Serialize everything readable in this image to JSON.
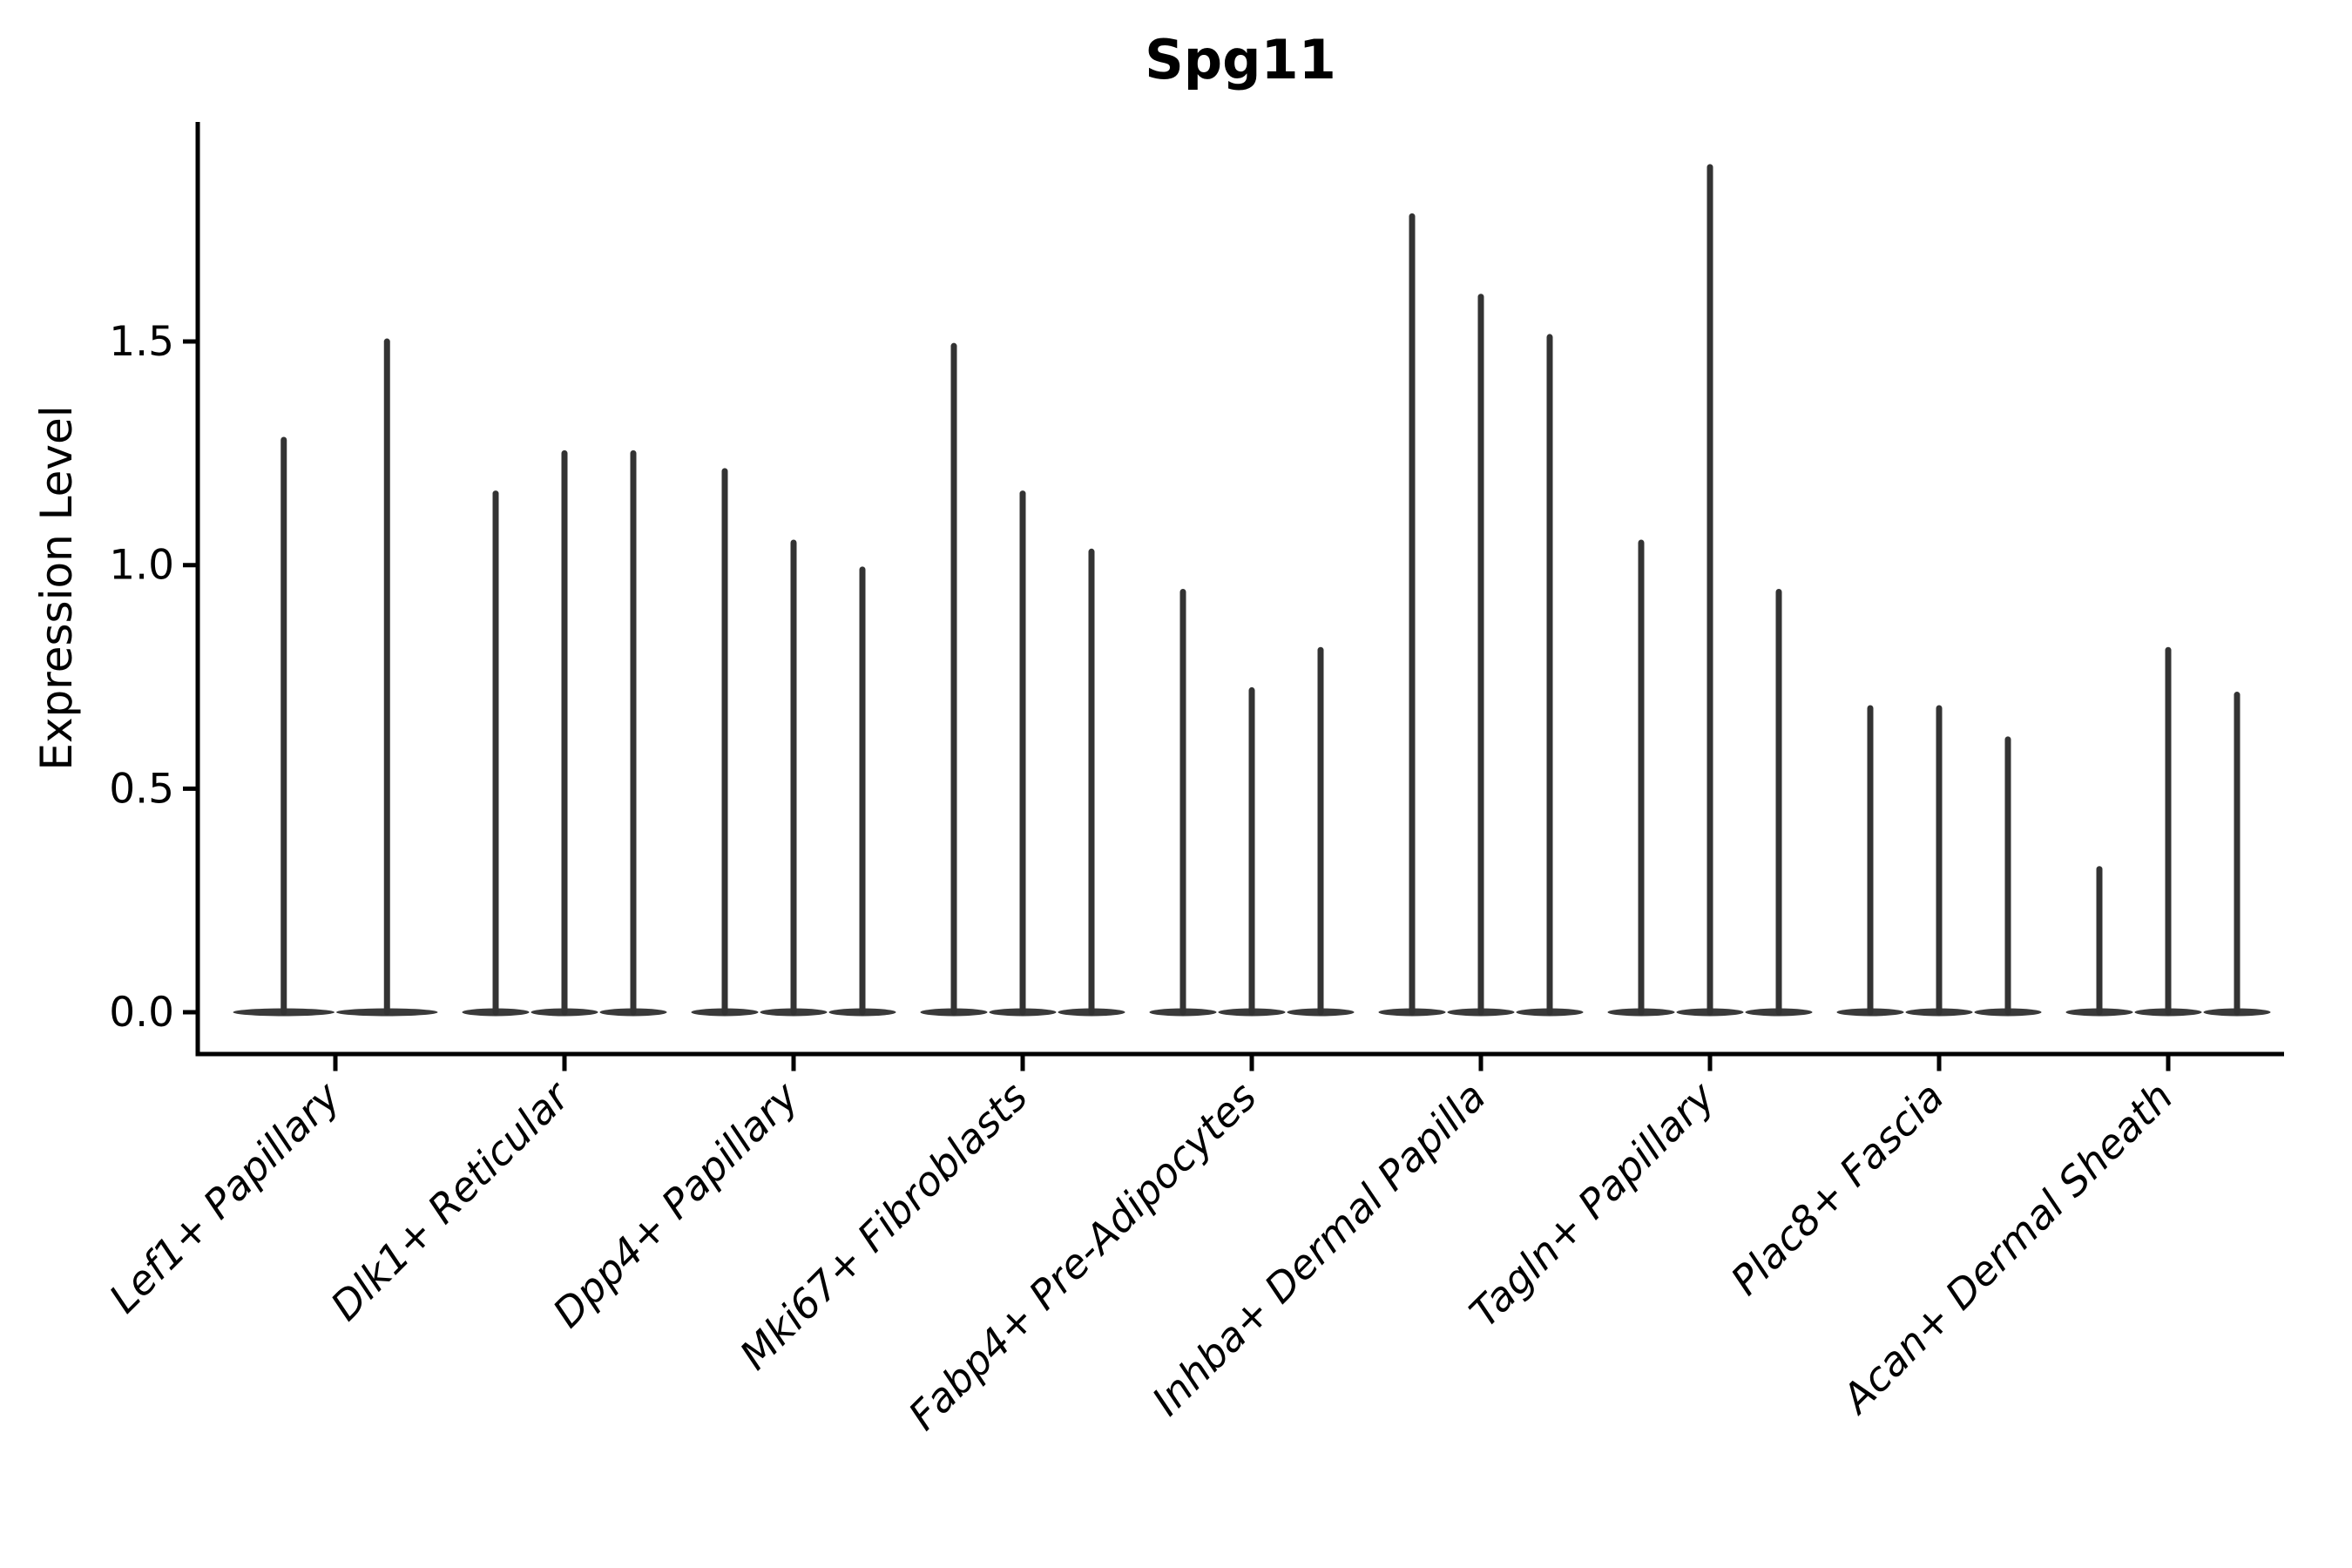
{
  "figure": {
    "title": "Spg11",
    "ylabel": "Expression Level"
  },
  "chart_data": {
    "type": "violin",
    "title": "Spg11",
    "xlabel": "",
    "ylabel": "Expression Level",
    "categories": [
      "Lef1+ Papillary",
      "Dlk1+ Reticular",
      "Dpp4+ Papillary",
      "Mki67+ Fibroblasts",
      "Fabp4+ Pre-Adipocytes",
      "Inhba+ Dermal Papilla",
      "Tagln+ Papillary",
      "Plac8+ Fascia",
      "Acan+ Dermal Sheath"
    ],
    "series": [
      {
        "category": "Lef1+ Papillary",
        "violin_maxima": [
          1.28,
          1.5
        ]
      },
      {
        "category": "Dlk1+ Reticular",
        "violin_maxima": [
          1.16,
          1.25,
          1.25
        ]
      },
      {
        "category": "Dpp4+ Papillary",
        "violin_maxima": [
          1.21,
          1.05,
          0.99
        ]
      },
      {
        "category": "Mki67+ Fibroblasts",
        "violin_maxima": [
          1.49,
          1.16,
          1.03
        ]
      },
      {
        "category": "Fabp4+ Pre-Adipocytes",
        "violin_maxima": [
          0.94,
          0.72,
          0.81
        ]
      },
      {
        "category": "Inhba+ Dermal Papilla",
        "violin_maxima": [
          1.78,
          1.6,
          1.51
        ]
      },
      {
        "category": "Tagln+ Papillary",
        "violin_maxima": [
          1.05,
          1.89,
          0.94
        ]
      },
      {
        "category": "Plac8+ Fascia",
        "violin_maxima": [
          0.68,
          0.68,
          0.61
        ]
      },
      {
        "category": "Acan+ Dermal Sheath",
        "violin_maxima": [
          0.32,
          0.81,
          0.71
        ]
      }
    ],
    "violin_baseline_value": 0.0,
    "yticks": [
      0.0,
      0.5,
      1.0,
      1.5
    ],
    "ytick_labels": [
      "0.0",
      "0.5",
      "1.0",
      "1.5"
    ],
    "ylim": [
      -0.09,
      1.99
    ],
    "x_tick_rotation_deg": 45,
    "x_tick_style": "italic",
    "grid": false,
    "legend": "none",
    "violin_color": "#333333",
    "baseline_color": "#3a3a3a",
    "axis_color": "#000000",
    "background_color": "#ffffff"
  }
}
